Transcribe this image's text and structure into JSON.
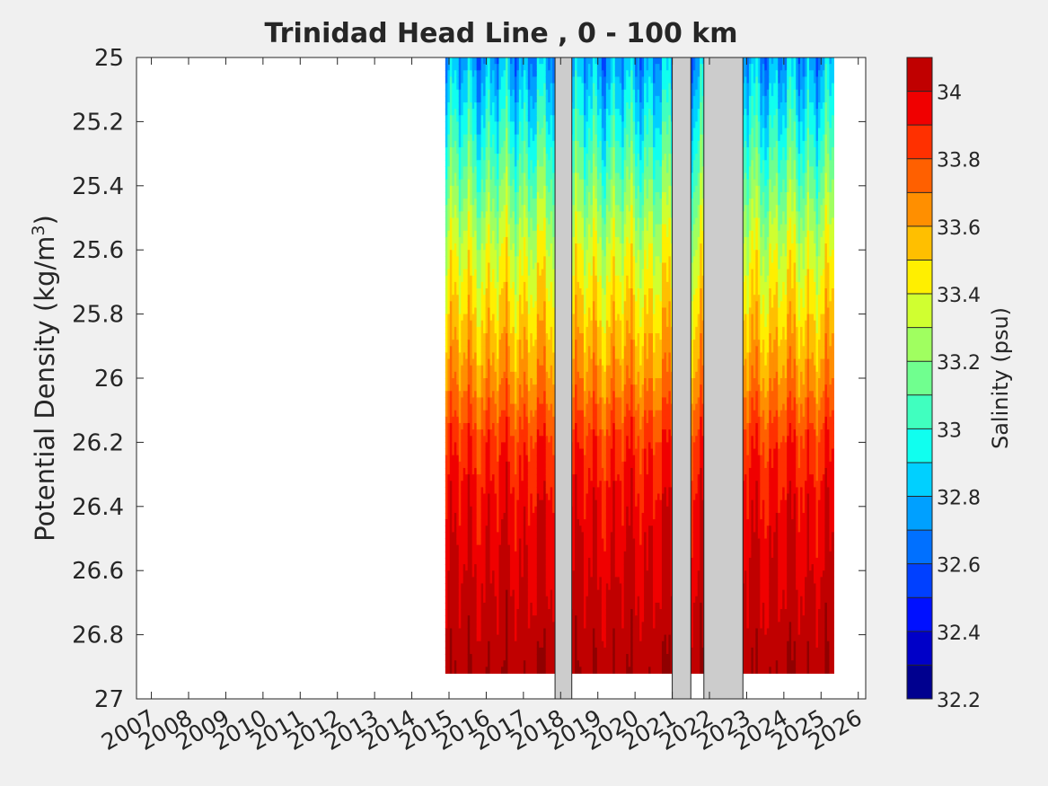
{
  "chart_data": {
    "type": "heatmap",
    "title": "Trinidad Head Line , 0 - 100 km",
    "ylabel_main": "Potential Density (kg/m",
    "ylabel_sup": "3",
    "ylabel_close": ")",
    "xlim": [
      2006.6,
      2026.2
    ],
    "ylim": [
      25,
      27
    ],
    "y_reversed": true,
    "x_ticks": [
      2007,
      2008,
      2009,
      2010,
      2011,
      2012,
      2013,
      2014,
      2015,
      2016,
      2017,
      2018,
      2019,
      2020,
      2021,
      2022,
      2023,
      2024,
      2025,
      2026
    ],
    "x_tick_labels": [
      "2007",
      "2008",
      "2009",
      "2010",
      "2011",
      "2012",
      "2013",
      "2014",
      "2015",
      "2016",
      "2017",
      "2018",
      "2019",
      "2020",
      "2021",
      "2022",
      "2023",
      "2024",
      "2025",
      "2026"
    ],
    "y_ticks": [
      25,
      25.2,
      25.4,
      25.6,
      25.8,
      26,
      26.2,
      26.4,
      26.6,
      26.8,
      27
    ],
    "y_tick_labels": [
      "25",
      "25.2",
      "25.4",
      "25.6",
      "25.8",
      "26",
      "26.2",
      "26.4",
      "26.6",
      "26.8",
      "27"
    ],
    "colorbar": {
      "label": "Salinity (psu)",
      "range": [
        32.2,
        34.1
      ],
      "ticks": [
        32.2,
        32.4,
        32.6,
        32.8,
        33,
        33.2,
        33.4,
        33.6,
        33.8,
        34
      ],
      "tick_labels": [
        "32.2",
        "32.4",
        "32.6",
        "32.8",
        "33",
        "33.2",
        "33.4",
        "33.6",
        "33.8",
        "34"
      ],
      "levels": [
        32.2,
        32.3,
        32.4,
        32.5,
        32.6,
        32.7,
        32.8,
        32.9,
        33.0,
        33.1,
        33.2,
        33.3,
        33.4,
        33.5,
        33.6,
        33.7,
        33.8,
        33.9,
        34.0,
        34.1
      ],
      "colors": [
        "#00008f",
        "#0000c8",
        "#0010ff",
        "#0040ff",
        "#0070ff",
        "#00a0ff",
        "#00d0ff",
        "#10ffef",
        "#40ffbf",
        "#70ff8f",
        "#a0ff60",
        "#d0ff30",
        "#ffef00",
        "#ffbf00",
        "#ff8f00",
        "#ff6000",
        "#ff3000",
        "#f00000",
        "#c00000",
        "#900000"
      ]
    },
    "data_extent": {
      "x_start": 2014.9,
      "x_end": 2025.3,
      "max_density": 26.9
    },
    "salinity_profile": {
      "density": [
        25.0,
        25.2,
        25.4,
        25.6,
        25.8,
        26.0,
        26.2,
        26.4,
        26.6,
        26.8,
        26.9
      ],
      "salinity": [
        32.75,
        32.95,
        33.15,
        33.35,
        33.5,
        33.65,
        33.85,
        33.95,
        34.0,
        34.05,
        34.08
      ]
    },
    "missing_periods": [
      [
        2017.85,
        2018.3
      ],
      [
        2021.0,
        2021.5
      ],
      [
        2021.85,
        2022.9
      ]
    ],
    "grid": false,
    "legend": "colorbar right"
  }
}
